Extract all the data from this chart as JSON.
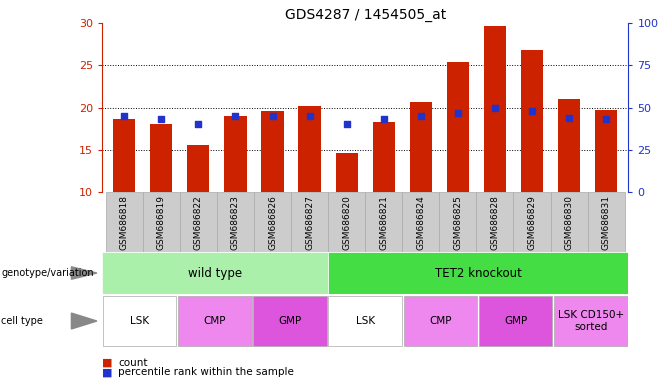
{
  "title": "GDS4287 / 1454505_at",
  "samples": [
    "GSM686818",
    "GSM686819",
    "GSM686822",
    "GSM686823",
    "GSM686826",
    "GSM686827",
    "GSM686820",
    "GSM686821",
    "GSM686824",
    "GSM686825",
    "GSM686828",
    "GSM686829",
    "GSM686830",
    "GSM686831"
  ],
  "counts": [
    18.7,
    18.0,
    15.6,
    19.0,
    19.6,
    20.2,
    14.6,
    18.3,
    20.6,
    25.4,
    29.7,
    26.8,
    21.0,
    19.7
  ],
  "percentiles": [
    45,
    43,
    40,
    45,
    45,
    45,
    40,
    43,
    45,
    47,
    50,
    48,
    44,
    43
  ],
  "ymin": 10,
  "ymax": 30,
  "y2min": 0,
  "y2max": 100,
  "yticks": [
    10,
    15,
    20,
    25,
    30
  ],
  "y2ticks": [
    0,
    25,
    50,
    75,
    100
  ],
  "bar_color": "#cc2200",
  "dot_color": "#2233cc",
  "genotype_groups": [
    {
      "label": "wild type",
      "start": 0,
      "end": 6,
      "color": "#aaf0aa"
    },
    {
      "label": "TET2 knockout",
      "start": 6,
      "end": 14,
      "color": "#44dd44"
    }
  ],
  "cell_type_groups": [
    {
      "label": "LSK",
      "start": 0,
      "end": 2,
      "color": "#ffffff"
    },
    {
      "label": "CMP",
      "start": 2,
      "end": 4,
      "color": "#ee88ee"
    },
    {
      "label": "GMP",
      "start": 4,
      "end": 6,
      "color": "#dd55dd"
    },
    {
      "label": "LSK",
      "start": 6,
      "end": 8,
      "color": "#ffffff"
    },
    {
      "label": "CMP",
      "start": 8,
      "end": 10,
      "color": "#ee88ee"
    },
    {
      "label": "GMP",
      "start": 10,
      "end": 12,
      "color": "#dd55dd"
    },
    {
      "label": "LSK CD150+\nsorted",
      "start": 12,
      "end": 14,
      "color": "#ee88ee"
    }
  ],
  "tick_label_color_left": "#cc2200",
  "tick_label_color_right": "#2233cc",
  "xticklabel_bg": "#cccccc",
  "xticklabel_border": "#999999"
}
